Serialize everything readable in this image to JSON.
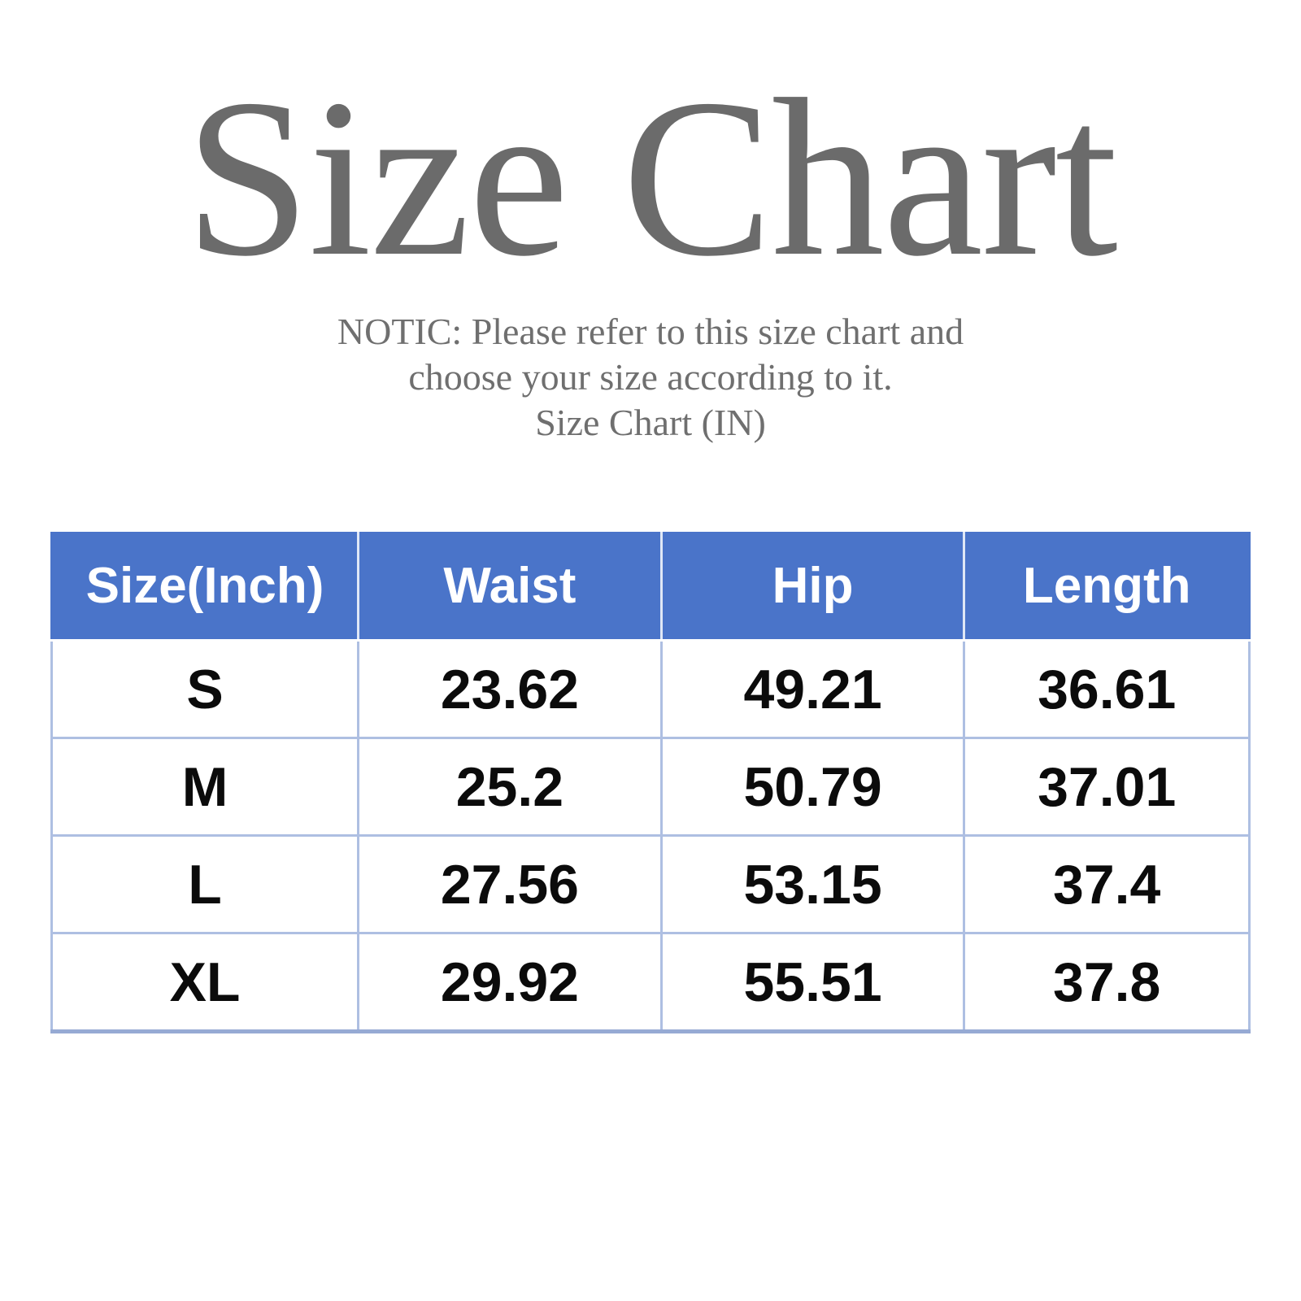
{
  "page": {
    "title": "Size Chart",
    "notice_line1": "NOTIC: Please refer to this size chart and",
    "notice_line2": "choose your size according to it.",
    "notice_line3": "Size Chart (IN)"
  },
  "chart_data": {
    "type": "table",
    "title": "Size Chart (IN)",
    "unit": "inches",
    "columns": [
      "Size(Inch)",
      "Waist",
      "Hip",
      "Length"
    ],
    "rows": [
      [
        "S",
        "23.62",
        "49.21",
        "36.61"
      ],
      [
        "M",
        "25.2",
        "50.79",
        "37.01"
      ],
      [
        "L",
        "27.56",
        "53.15",
        "37.4"
      ],
      [
        "XL",
        "29.92",
        "55.51",
        "37.8"
      ]
    ]
  },
  "colors": {
    "header_bg": "#4a74c9",
    "header_text": "#ffffff",
    "grid_line": "#aebfe2",
    "outer_bottom_line": "#96aad4",
    "title_text": "#6b6b6b",
    "notice_text": "#6f6f6f",
    "body_text": "#0b0b0b",
    "background": "#ffffff"
  }
}
